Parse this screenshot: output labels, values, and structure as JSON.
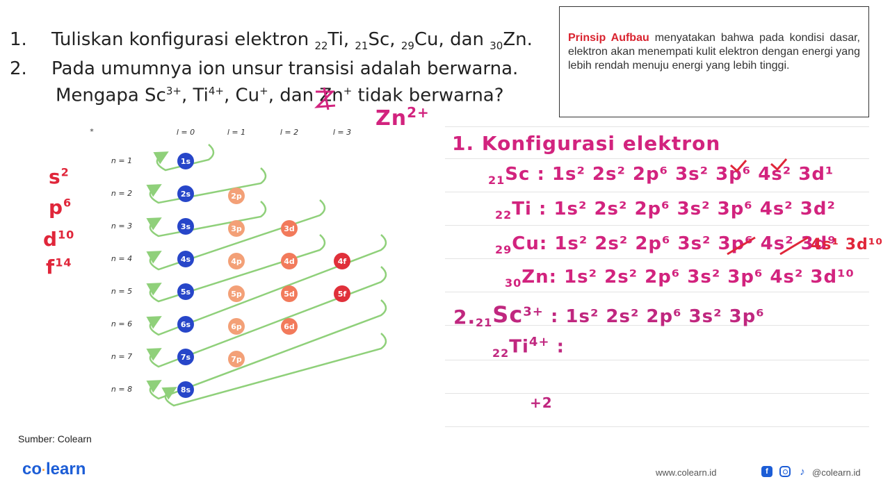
{
  "questions": {
    "q1_num": "1.",
    "q1_text": "Tuliskan konfigurasi elektron ",
    "q1_el1_sub": "22",
    "q1_el1": "Ti, ",
    "q1_el2_sub": "21",
    "q1_el2": "Sc, ",
    "q1_el3_sub": "29",
    "q1_el3": "Cu, dan ",
    "q1_el4_sub": "30",
    "q1_el4": "Zn.",
    "q2_num": "2.",
    "q2_line1": "Pada umumnya ion unsur transisi adalah berwarna.",
    "q2_line2a": "Mengapa Sc",
    "q2_sup1": "3+",
    "q2_line2b": ", Ti",
    "q2_sup2": "4+",
    "q2_line2c": ", Cu",
    "q2_sup3": "+",
    "q2_line2d": ", dan Zn",
    "q2_sup4": "+",
    "q2_line2e": " tidak berwarna?"
  },
  "info_box": {
    "highlight": "Prinsip Aufbau",
    "text": " menyatakan bahwa pada kondisi dasar, elektron akan menempati kulit elektron dengan energi yang lebih rendah menuju energi yang lebih tinggi."
  },
  "diagram": {
    "l_labels": [
      "l = 0",
      "l = 1",
      "l = 2",
      "l = 3"
    ],
    "n_labels": [
      "n = 1",
      "n = 2",
      "n = 3",
      "n = 4",
      "n = 5",
      "n = 6",
      "n = 7",
      "n = 8"
    ],
    "orbitals_s": [
      "1s",
      "2s",
      "3s",
      "4s",
      "5s",
      "6s",
      "7s",
      "8s"
    ],
    "orbitals_p": [
      "2p",
      "3p",
      "4p",
      "5p",
      "6p",
      "7p"
    ],
    "orbitals_d": [
      "3d",
      "4d",
      "5d",
      "6d"
    ],
    "orbitals_f": [
      "4f",
      "5f"
    ],
    "colors": {
      "s": "#2746c9",
      "p": "#f3a077",
      "d": "#f27a5b",
      "f": "#e0303a",
      "arrow": "#8fd07a"
    }
  },
  "handwriting": {
    "zn_correction": "Zn",
    "zn_correction_sup": "2+",
    "margin": [
      "s",
      "p",
      "d",
      "f"
    ],
    "margin_sup": [
      "2",
      "6",
      "10",
      "14"
    ],
    "heading": "1. Konfigurasi elektron",
    "sc_sub": "21",
    "sc_label": "Sc :",
    "sc_config": "1s² 2s² 2p⁶ 3s² 3p⁶ 4s² 3d¹",
    "ti_sub": "22",
    "ti_label": "Ti :",
    "ti_config": "1s² 2s² 2p⁶ 3s² 3p⁶ 4s² 3d²",
    "cu_sub": "29",
    "cu_label": "Cu:",
    "cu_config": "1s² 2s² 2p⁶ 3s² 3p⁶ 4s² 3d⁹",
    "cu_fix": "4s¹ 3d¹⁰",
    "zn_sub": "30",
    "zn_label": "Zn:",
    "zn_config": "1s² 2s² 2p⁶ 3s² 3p⁶ 4s² 3d¹⁰",
    "q2_label": "2.",
    "sc_ion_sub": "21",
    "sc_ion": "Sc",
    "sc_ion_sup": "3+",
    "sc_ion_config": ": 1s² 2s² 2p⁶ 3s² 3p⁶",
    "ti_ion_sub": "22",
    "ti_ion": "Ti",
    "ti_ion_sup": "4+",
    "ti_ion_colon": ":",
    "plus2": "+2"
  },
  "footer": {
    "source": "Sumber: Colearn",
    "logo_a": "co",
    "logo_b": "learn",
    "website": "www.colearn.id",
    "handle": "@colearn.id"
  }
}
